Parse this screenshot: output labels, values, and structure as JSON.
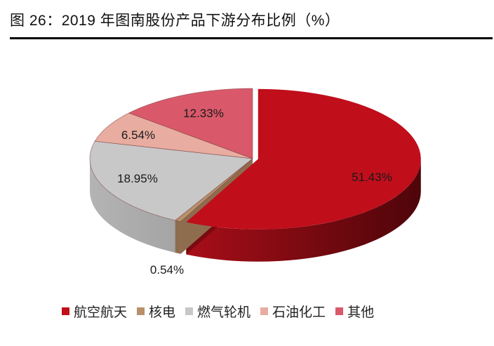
{
  "header": {
    "title": "图 26：2019 年图南股份产品下游分布比例（%）"
  },
  "chart_data": {
    "type": "pie",
    "style": "3d-exploded",
    "title": "2019 年图南股份产品下游分布比例（%）",
    "categories": [
      "航空航天",
      "核电",
      "燃气轮机",
      "石油化工",
      "其他"
    ],
    "values": [
      51.43,
      0.54,
      18.95,
      6.54,
      12.33
    ],
    "labels": [
      "51.43%",
      "0.54%",
      "18.95%",
      "6.54%",
      "12.33%"
    ],
    "colors": [
      "#C00E1B",
      "#B8916B",
      "#C8C8C8",
      "#E8ADA0",
      "#D9596A"
    ],
    "side_colors": [
      "#7A0A12",
      "#8E6C4E",
      "#A8A8A8",
      "#C88C80",
      "#A8404E"
    ],
    "exploded": [
      "航空航天"
    ],
    "legend_position": "bottom"
  },
  "legend": {
    "items": [
      {
        "label": "航空航天",
        "color": "#C00E1B"
      },
      {
        "label": "核电",
        "color": "#B8916B"
      },
      {
        "label": "燃气轮机",
        "color": "#C8C8C8"
      },
      {
        "label": "石油化工",
        "color": "#E8ADA0"
      },
      {
        "label": "其他",
        "color": "#D9596A"
      }
    ]
  }
}
